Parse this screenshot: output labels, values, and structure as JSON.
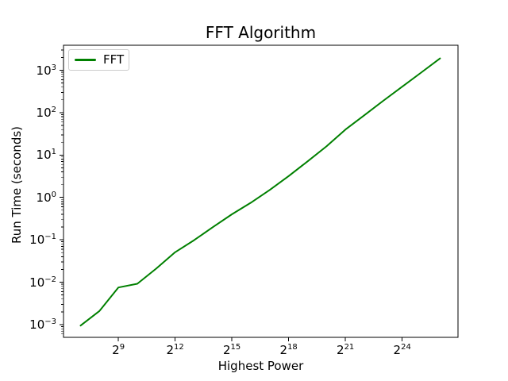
{
  "figure": {
    "background": "#ffffff",
    "text_color": "#000000",
    "spine_color": "#000000"
  },
  "chart_data": {
    "type": "line",
    "title": "FFT Algorithm",
    "xlabel": "Highest Power",
    "ylabel": "Run Time (seconds)",
    "x_scale": "log2",
    "y_scale": "log10",
    "grid": false,
    "x_tick_base": 2,
    "x_tick_powers": [
      9,
      12,
      15,
      18,
      21,
      24
    ],
    "y_tick_base": 10,
    "y_tick_exponents": [
      3,
      2,
      1,
      0,
      -1,
      -2,
      -3
    ],
    "xlim_log2": [
      6.1,
      26.95
    ],
    "ylim_log10": [
      -3.3,
      3.59
    ],
    "legend": {
      "position": "upper-left",
      "entries": [
        {
          "label": "FFT",
          "color": "#008000"
        }
      ]
    },
    "series": [
      {
        "name": "FFT",
        "color": "#008000",
        "x_powers_of_2": [
          7,
          8,
          9,
          10,
          11,
          12,
          13,
          14,
          15,
          16,
          17,
          18,
          19,
          20,
          21,
          22,
          23,
          24,
          25,
          26
        ],
        "runtime_seconds": [
          0.00095,
          0.0021,
          0.0075,
          0.0092,
          0.021,
          0.051,
          0.098,
          0.2,
          0.4,
          0.75,
          1.5,
          3.2,
          7.1,
          16,
          40,
          87,
          190,
          410,
          880,
          1900
        ]
      }
    ]
  }
}
